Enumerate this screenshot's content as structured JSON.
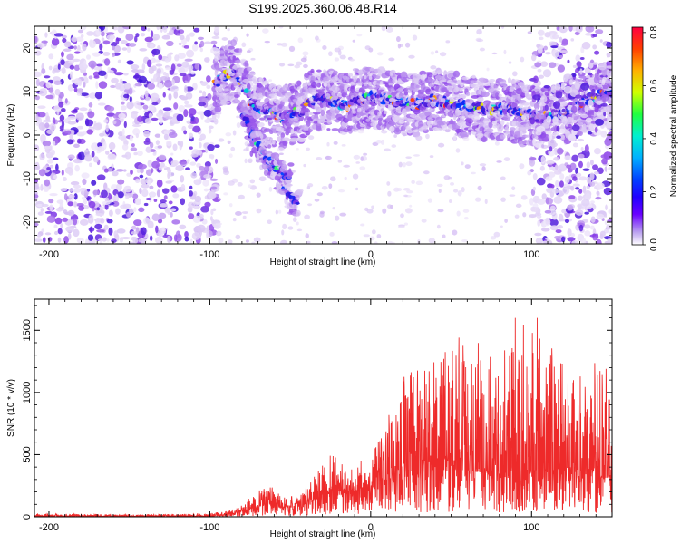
{
  "figure_title": "S199.2025.360.06.48.R14",
  "chart_data": [
    {
      "type": "heatmap",
      "title": "S199.2025.360.06.48.R14",
      "xlabel": "Height of straight line (km)",
      "ylabel": "Frequency (Hz)",
      "xlim": [
        -209,
        150
      ],
      "ylim": [
        -25,
        25
      ],
      "x_ticks": [
        -200,
        -100,
        0,
        100
      ],
      "y_ticks": [
        -20,
        -10,
        0,
        10,
        20
      ],
      "colorbar": {
        "label": "Normalized spectral amplitude",
        "range": [
          0.0,
          0.82
        ],
        "ticks": [
          0.0,
          0.2,
          0.4,
          0.6,
          0.8
        ],
        "colormap": [
          "#ffffff",
          "#d8c4f4",
          "#8a3ee8",
          "#3a10d8",
          "#0030ff",
          "#00a0ff",
          "#00e8c0",
          "#40ff40",
          "#d8ff00",
          "#ffb000",
          "#ff4000",
          "#ff0040"
        ]
      },
      "features": [
        {
          "name": "broadband-noise",
          "x_range": [
            -209,
            -95
          ],
          "y_range": [
            -25,
            25
          ],
          "amplitude": 0.15
        },
        {
          "name": "main-ridge",
          "points": [
            [
              -97,
              12
            ],
            [
              -85,
              15
            ],
            [
              -75,
              8
            ],
            [
              -65,
              5
            ],
            [
              -55,
              4
            ],
            [
              -45,
              5
            ],
            [
              -35,
              8
            ],
            [
              -25,
              8
            ],
            [
              -15,
              7
            ],
            [
              -5,
              8
            ],
            [
              0,
              9
            ],
            [
              10,
              8
            ],
            [
              25,
              7
            ],
            [
              40,
              8
            ],
            [
              55,
              7
            ],
            [
              70,
              6
            ],
            [
              85,
              6
            ],
            [
              95,
              5
            ],
            [
              105,
              4
            ],
            [
              120,
              5
            ],
            [
              135,
              8
            ],
            [
              150,
              10
            ]
          ],
          "peak_amplitude": 0.82
        },
        {
          "name": "lower-branch-1",
          "points": [
            [
              -80,
              5
            ],
            [
              -70,
              -2
            ],
            [
              -60,
              -8
            ],
            [
              -50,
              -14
            ],
            [
              -45,
              -17
            ]
          ],
          "peak_amplitude": 0.3
        },
        {
          "name": "lower-branch-2",
          "points": [
            [
              -75,
              0
            ],
            [
              -65,
              -5
            ],
            [
              -55,
              -9
            ],
            [
              -50,
              -10
            ]
          ],
          "peak_amplitude": 0.5
        },
        {
          "name": "right-noise",
          "x_range": [
            100,
            150
          ],
          "y_range": [
            -25,
            25
          ],
          "amplitude": 0.15
        }
      ]
    },
    {
      "type": "line",
      "title": "",
      "xlabel": "Height of straight line (km)",
      "ylabel": "SNR (10 * v/v)",
      "xlim": [
        -209,
        150
      ],
      "ylim": [
        0,
        1750
      ],
      "x_ticks": [
        -200,
        -100,
        0,
        100
      ],
      "y_ticks": [
        0,
        500,
        1000,
        1500
      ],
      "series": [
        {
          "name": "SNR",
          "color": "#ee2a2a",
          "envelope": [
            {
              "x": -209,
              "base": 5,
              "amp": 25
            },
            {
              "x": -150,
              "base": 5,
              "amp": 20
            },
            {
              "x": -100,
              "base": 5,
              "amp": 25
            },
            {
              "x": -85,
              "base": 20,
              "amp": 60
            },
            {
              "x": -75,
              "base": 60,
              "amp": 150
            },
            {
              "x": -65,
              "base": 100,
              "amp": 260
            },
            {
              "x": -55,
              "base": 70,
              "amp": 180
            },
            {
              "x": -45,
              "base": 80,
              "amp": 150
            },
            {
              "x": -35,
              "base": 130,
              "amp": 320
            },
            {
              "x": -25,
              "base": 190,
              "amp": 500
            },
            {
              "x": -15,
              "base": 220,
              "amp": 420
            },
            {
              "x": -5,
              "base": 200,
              "amp": 470
            },
            {
              "x": 0,
              "base": 210,
              "amp": 460
            },
            {
              "x": 10,
              "base": 260,
              "amp": 780
            },
            {
              "x": 20,
              "base": 320,
              "amp": 1100
            },
            {
              "x": 40,
              "base": 350,
              "amp": 1250
            },
            {
              "x": 55,
              "base": 380,
              "amp": 1400
            },
            {
              "x": 70,
              "base": 350,
              "amp": 1350
            },
            {
              "x": 85,
              "base": 350,
              "amp": 1400
            },
            {
              "x": 97,
              "base": 380,
              "amp": 1750
            },
            {
              "x": 110,
              "base": 350,
              "amp": 1400
            },
            {
              "x": 125,
              "base": 330,
              "amp": 1200
            },
            {
              "x": 140,
              "base": 320,
              "amp": 1250
            },
            {
              "x": 150,
              "base": 310,
              "amp": 1100
            }
          ]
        }
      ]
    }
  ]
}
